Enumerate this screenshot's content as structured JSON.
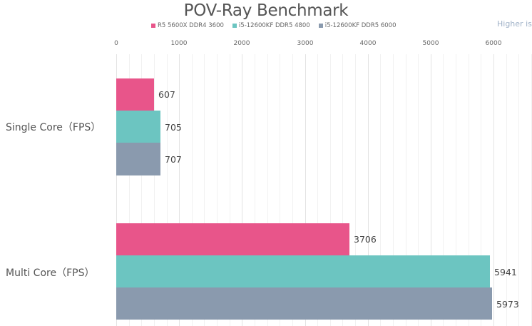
{
  "chart_data": {
    "type": "bar",
    "orientation": "horizontal",
    "title": "POV-Ray Benchmark",
    "annotation": "Higher is",
    "categories": [
      "Single Core（FPS）",
      "Multi Core（FPS）"
    ],
    "series": [
      {
        "name": "R5 5600X DDR4 3600",
        "color": "#e8558a",
        "values": [
          607,
          3706
        ]
      },
      {
        "name": "i5-12600KF DDR5 4800",
        "color": "#6cc5c1",
        "values": [
          705,
          5941
        ]
      },
      {
        "name": "i5-12600KF DDR5 6000",
        "color": "#8a9aae",
        "values": [
          707,
          5973
        ]
      }
    ],
    "xticks": [
      0,
      1000,
      2000,
      3000,
      4000,
      5000,
      6000
    ],
    "xlim": [
      0,
      7000
    ],
    "xlabel": "",
    "ylabel": "",
    "grid": true,
    "legend_position": "top"
  },
  "labels": {
    "title": "POV-Ray Benchmark",
    "higher": "Higher is",
    "legend": [
      "R5 5600X DDR4 3600",
      "i5-12600KF DDR5 4800",
      "i5-12600KF DDR5 6000"
    ],
    "ticks": [
      "0",
      "1000",
      "2000",
      "3000",
      "4000",
      "5000",
      "6000"
    ],
    "cat_single": "Single Core（FPS）",
    "cat_multi": "Multi Core（FPS）",
    "vals": [
      "607",
      "705",
      "707",
      "3706",
      "5941",
      "5973"
    ]
  }
}
